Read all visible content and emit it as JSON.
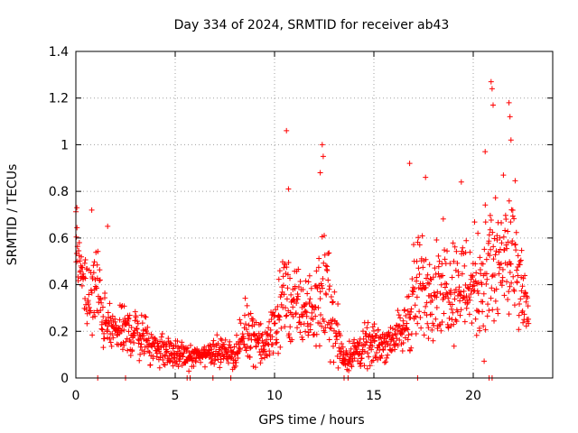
{
  "chart_data": {
    "type": "scatter",
    "title": "Day 334 of 2024, SRMTID for receiver ab43",
    "xlabel": "GPS time / hours",
    "ylabel": "SRMTID / TECUs",
    "xlim": [
      0,
      24
    ],
    "ylim": [
      0,
      1.4
    ],
    "xticks": [
      0,
      5,
      10,
      15,
      20
    ],
    "xtick_labels": [
      "0",
      "5",
      "10",
      "15",
      "20"
    ],
    "yticks": [
      0,
      0.2,
      0.4,
      0.6,
      0.8,
      1.0,
      1.2,
      1.4
    ],
    "ytick_labels": [
      "0",
      "0.2",
      "0.4",
      "0.6",
      "0.8",
      "1",
      "1.2",
      "1.4"
    ],
    "grid": true,
    "marker": "plus",
    "series": [
      {
        "name": "SRMTID",
        "color": "#ff0000",
        "envelope": [
          {
            "x": 0.0,
            "y": 0.55,
            "spread": 0.18
          },
          {
            "x": 0.5,
            "y": 0.33,
            "spread": 0.12
          },
          {
            "x": 1.0,
            "y": 0.4,
            "spread": 0.2
          },
          {
            "x": 1.5,
            "y": 0.22,
            "spread": 0.1
          },
          {
            "x": 2.0,
            "y": 0.2,
            "spread": 0.08
          },
          {
            "x": 3.0,
            "y": 0.2,
            "spread": 0.1
          },
          {
            "x": 4.0,
            "y": 0.13,
            "spread": 0.07
          },
          {
            "x": 5.0,
            "y": 0.1,
            "spread": 0.05
          },
          {
            "x": 6.0,
            "y": 0.09,
            "spread": 0.04
          },
          {
            "x": 7.0,
            "y": 0.12,
            "spread": 0.05
          },
          {
            "x": 8.0,
            "y": 0.1,
            "spread": 0.05
          },
          {
            "x": 8.7,
            "y": 0.22,
            "spread": 0.12
          },
          {
            "x": 9.5,
            "y": 0.12,
            "spread": 0.06
          },
          {
            "x": 10.5,
            "y": 0.35,
            "spread": 0.2
          },
          {
            "x": 11.0,
            "y": 0.3,
            "spread": 0.15
          },
          {
            "x": 12.0,
            "y": 0.28,
            "spread": 0.12
          },
          {
            "x": 12.5,
            "y": 0.4,
            "spread": 0.25
          },
          {
            "x": 13.5,
            "y": 0.08,
            "spread": 0.05
          },
          {
            "x": 14.5,
            "y": 0.13,
            "spread": 0.08
          },
          {
            "x": 15.5,
            "y": 0.15,
            "spread": 0.07
          },
          {
            "x": 16.5,
            "y": 0.2,
            "spread": 0.08
          },
          {
            "x": 17.0,
            "y": 0.35,
            "spread": 0.22
          },
          {
            "x": 18.0,
            "y": 0.4,
            "spread": 0.18
          },
          {
            "x": 19.0,
            "y": 0.4,
            "spread": 0.2
          },
          {
            "x": 20.0,
            "y": 0.4,
            "spread": 0.2
          },
          {
            "x": 20.8,
            "y": 0.45,
            "spread": 0.3
          },
          {
            "x": 21.5,
            "y": 0.5,
            "spread": 0.25
          },
          {
            "x": 22.0,
            "y": 0.5,
            "spread": 0.3
          },
          {
            "x": 22.8,
            "y": 0.25,
            "spread": 0.06
          }
        ],
        "peaks": [
          {
            "x": 0.05,
            "y": 0.73
          },
          {
            "x": 0.8,
            "y": 0.72
          },
          {
            "x": 1.6,
            "y": 0.65
          },
          {
            "x": 10.6,
            "y": 1.06
          },
          {
            "x": 10.7,
            "y": 0.81
          },
          {
            "x": 12.4,
            "y": 1.0
          },
          {
            "x": 12.45,
            "y": 0.95
          },
          {
            "x": 12.3,
            "y": 0.88
          },
          {
            "x": 16.8,
            "y": 0.92
          },
          {
            "x": 17.6,
            "y": 0.86
          },
          {
            "x": 19.4,
            "y": 0.84
          },
          {
            "x": 20.6,
            "y": 0.97
          },
          {
            "x": 20.9,
            "y": 1.27
          },
          {
            "x": 20.95,
            "y": 1.24
          },
          {
            "x": 21.0,
            "y": 1.17
          },
          {
            "x": 21.8,
            "y": 1.18
          },
          {
            "x": 21.85,
            "y": 1.12
          },
          {
            "x": 21.9,
            "y": 1.02
          }
        ],
        "zero_points": [
          1.1,
          2.5,
          5.6,
          5.75,
          6.9,
          7.8,
          13.5,
          13.7,
          17.2,
          20.8,
          20.95
        ]
      }
    ]
  }
}
